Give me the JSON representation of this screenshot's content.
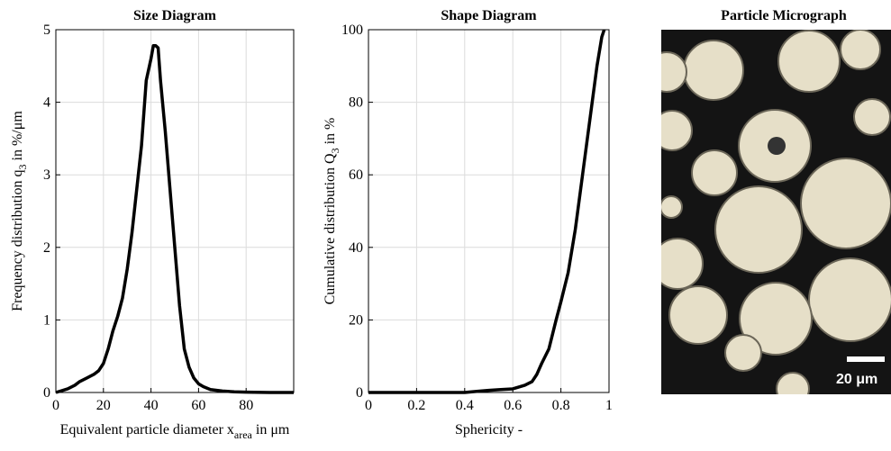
{
  "chart_data": [
    {
      "type": "line",
      "title": "Size Diagram",
      "xlabel": [
        "Equivalent particle diameter x",
        "area",
        " in μm"
      ],
      "ylabel": [
        "Frequency distribution q",
        "3",
        " in %/μm"
      ],
      "xlim": [
        0,
        100
      ],
      "xticks": [
        0,
        20,
        40,
        60,
        80
      ],
      "ylim": [
        0,
        5
      ],
      "yticks": [
        0,
        1,
        2,
        3,
        4,
        5
      ],
      "grid": true,
      "series": [
        {
          "color": "#000000",
          "x": [
            0,
            2,
            5,
            8,
            10,
            13,
            16,
            18,
            20,
            22,
            24,
            26,
            28,
            30,
            32,
            34,
            36,
            38,
            40,
            41,
            42,
            43,
            44,
            46,
            48,
            50,
            52,
            54,
            56,
            58,
            60,
            62,
            65,
            70,
            75,
            80,
            90,
            100
          ],
          "values": [
            0,
            0.02,
            0.05,
            0.1,
            0.15,
            0.2,
            0.25,
            0.3,
            0.4,
            0.6,
            0.85,
            1.05,
            1.3,
            1.7,
            2.2,
            2.8,
            3.4,
            4.3,
            4.6,
            4.78,
            4.78,
            4.75,
            4.3,
            3.6,
            2.8,
            2.0,
            1.2,
            0.6,
            0.35,
            0.2,
            0.12,
            0.08,
            0.04,
            0.02,
            0.01,
            0.005,
            0,
            0
          ]
        }
      ]
    },
    {
      "type": "line",
      "title": "Shape Diagram",
      "xlabel": [
        "Sphericity -"
      ],
      "ylabel": [
        "Cumulative distribution Q",
        "3",
        " in %"
      ],
      "xlim": [
        0,
        1
      ],
      "xticks": [
        0,
        0.2,
        0.4,
        0.6,
        0.8,
        1
      ],
      "ylim": [
        0,
        100
      ],
      "yticks": [
        0,
        20,
        40,
        60,
        80,
        100
      ],
      "grid": true,
      "series": [
        {
          "color": "#000000",
          "x": [
            0,
            0.2,
            0.4,
            0.45,
            0.5,
            0.55,
            0.6,
            0.65,
            0.68,
            0.7,
            0.72,
            0.75,
            0.78,
            0.8,
            0.83,
            0.86,
            0.89,
            0.92,
            0.95,
            0.97,
            0.98
          ],
          "values": [
            0,
            0,
            0,
            0.3,
            0.6,
            0.8,
            1,
            2,
            3,
            5,
            8,
            12,
            20,
            25,
            33,
            45,
            60,
            75,
            90,
            98,
            100
          ]
        }
      ]
    }
  ],
  "image": {
    "title": "Particle Micrograph",
    "scale_label": "20 μm"
  }
}
